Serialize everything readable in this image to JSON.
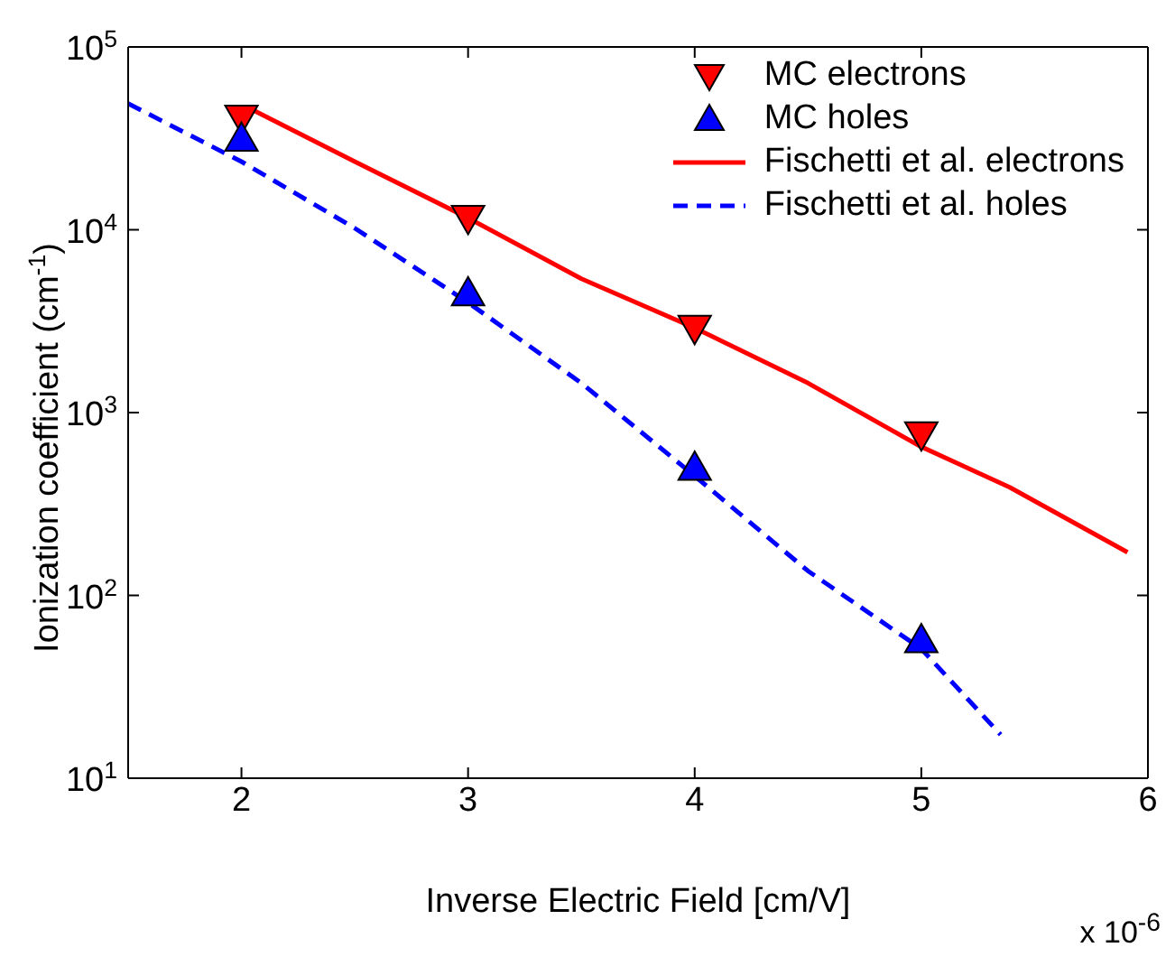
{
  "chart_data": {
    "type": "line",
    "xlabel": "Inverse Electric Field [cm/V]",
    "ylabel": "Ionization coefficient (cm$^{-1}$)",
    "annotations": [
      "x 10$^{-6}$"
    ],
    "log": "y",
    "xlim": [
      1.5,
      6
    ],
    "xticks": [
      2,
      3,
      4,
      5,
      6
    ],
    "ylim": [
      10,
      100000
    ],
    "yticks": [
      {
        "value": 10,
        "label": "10$^{1}$"
      },
      {
        "value": 100,
        "label": "10$^{2}$"
      },
      {
        "value": 1000,
        "label": "10$^{3}$"
      },
      {
        "value": 10000,
        "label": "10$^{4}$"
      },
      {
        "value": 100000,
        "label": "10$^{5}$"
      }
    ],
    "grid": false,
    "legend": "top right",
    "series": [
      {
        "name": "MC electrons",
        "type": "scatter",
        "marker": "triangle-down",
        "color": "#ff0000",
        "x": [
          2,
          3,
          4,
          5
        ],
        "values": [
          41000,
          11600,
          2900,
          760
        ]
      },
      {
        "name": "MC holes",
        "type": "scatter",
        "marker": "triangle",
        "color": "#0000ff",
        "x": [
          2,
          3,
          4,
          5
        ],
        "values": [
          31500,
          4500,
          500,
          57
        ]
      },
      {
        "name": "Fischetti et al. electrons",
        "line_style": "solid",
        "color": "#ff0000",
        "x": [
          2.03,
          2.5,
          3,
          3.5,
          4,
          4.5,
          5,
          5.39,
          5.91
        ],
        "values": [
          46500,
          23600,
          11600,
          5400,
          2900,
          1450,
          650,
          390,
          172
        ]
      },
      {
        "name": "Fischetti et al. holes",
        "line_style": "dashed",
        "color": "#0000ff",
        "x": [
          1.5,
          2,
          2.5,
          3,
          3.5,
          4,
          4.5,
          5,
          5.35
        ],
        "values": [
          49000,
          23600,
          10200,
          4000,
          1450,
          450,
          136,
          51,
          17.3
        ]
      }
    ]
  }
}
